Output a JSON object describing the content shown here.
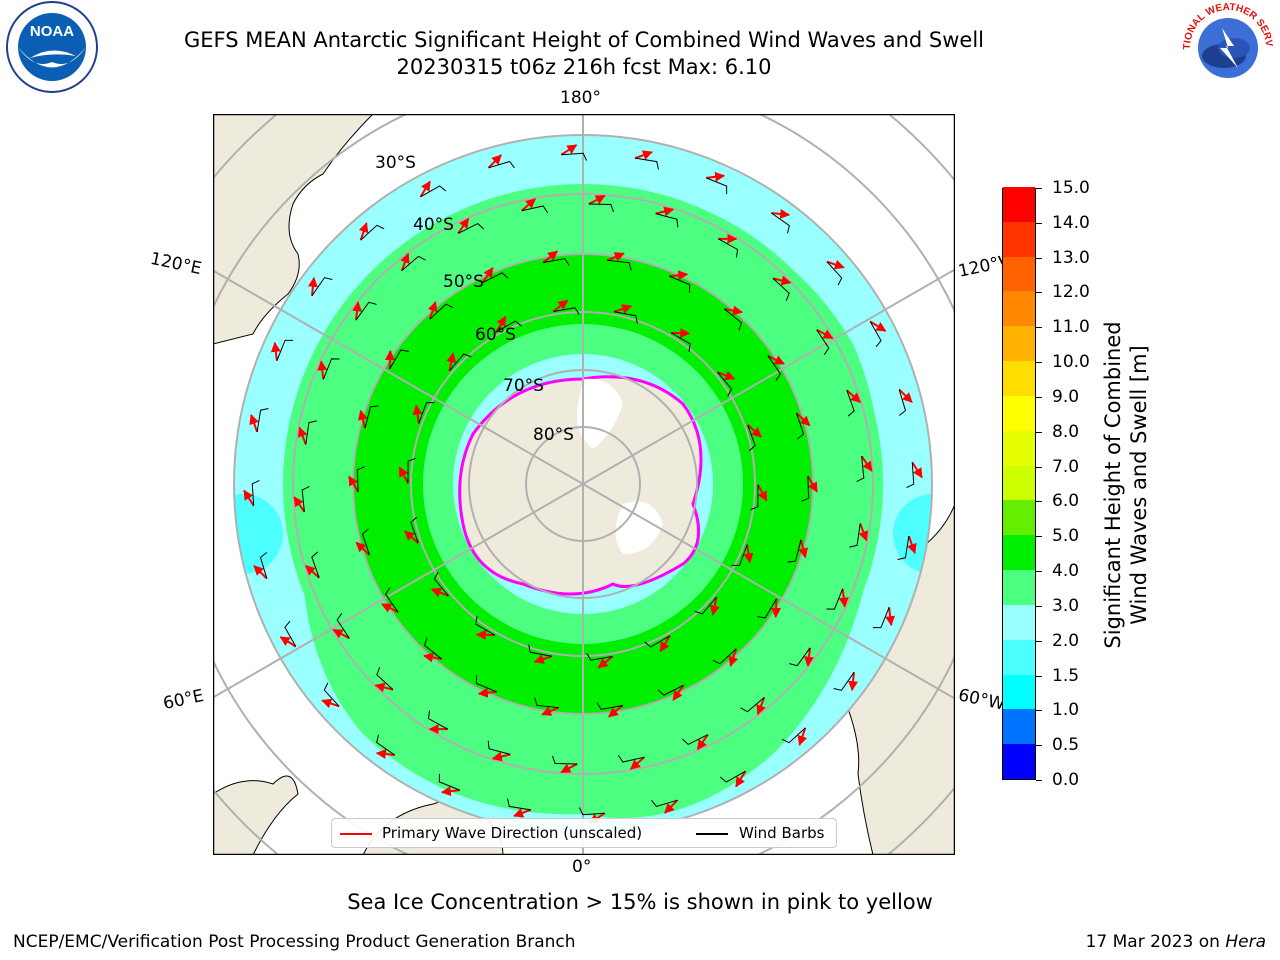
{
  "header": {
    "title_line1": "GEFS MEAN Antarctic Significant Height of Combined Wind Waves and Swell",
    "title_line2": "20230315 t06z 216h fcst   Max: 6.10"
  },
  "logos": {
    "left": {
      "text": "NOAA",
      "icon": "noaa-logo-icon"
    },
    "right": {
      "text": "NATIONAL WEATHER SERVICE",
      "icon": "nws-logo-icon"
    }
  },
  "map": {
    "projection": "south-polar-stereographic",
    "longitude_labels": {
      "top": "180°",
      "bottom": "0°",
      "left_upper": "120°E",
      "left_lower": "60°E",
      "right_upper": "120°W",
      "right_lower": "60°W"
    },
    "latitude_labels": [
      "30°S",
      "40°S",
      "50°S",
      "60°S",
      "70°S",
      "80°S"
    ],
    "colors": {
      "land": "#efebdc",
      "ocean_low": "#99ffff",
      "ocean_mid": "#4dff80",
      "ocean_high": "#00ee00",
      "arrow": "#ff0000",
      "barb": "#000000",
      "ice": "#ff00ff",
      "grid": "#b0b0b0"
    }
  },
  "colorbar": {
    "label_line1": "Significant Height of Combined",
    "label_line2": "Wind Waves and Swell [m]",
    "ticks": [
      "0.0",
      "0.5",
      "1.0",
      "1.5",
      "2.0",
      "3.0",
      "4.0",
      "5.0",
      "6.0",
      "7.0",
      "8.0",
      "9.0",
      "10.0",
      "11.0",
      "12.0",
      "13.0",
      "14.0",
      "15.0"
    ],
    "colors": [
      "#0000ff",
      "#0073ff",
      "#00ffff",
      "#4dffff",
      "#99ffff",
      "#4dff80",
      "#00ee00",
      "#66ee00",
      "#ccff00",
      "#e6ff00",
      "#ffff00",
      "#ffdd00",
      "#ffb300",
      "#ff8800",
      "#ff6200",
      "#ff3300",
      "#ff0000"
    ]
  },
  "legend": {
    "items": [
      {
        "label": "Primary Wave Direction (unscaled)",
        "color": "#ff0000"
      },
      {
        "label": "Wind Barbs",
        "color": "#000000"
      }
    ]
  },
  "caption": "Sea Ice Concentration > 15% is shown in pink to yellow",
  "footer": {
    "left": "NCEP/EMC/Verification Post Processing Product Generation Branch",
    "right_prefix": "17 Mar 2023 on ",
    "right_em": "Hera"
  }
}
